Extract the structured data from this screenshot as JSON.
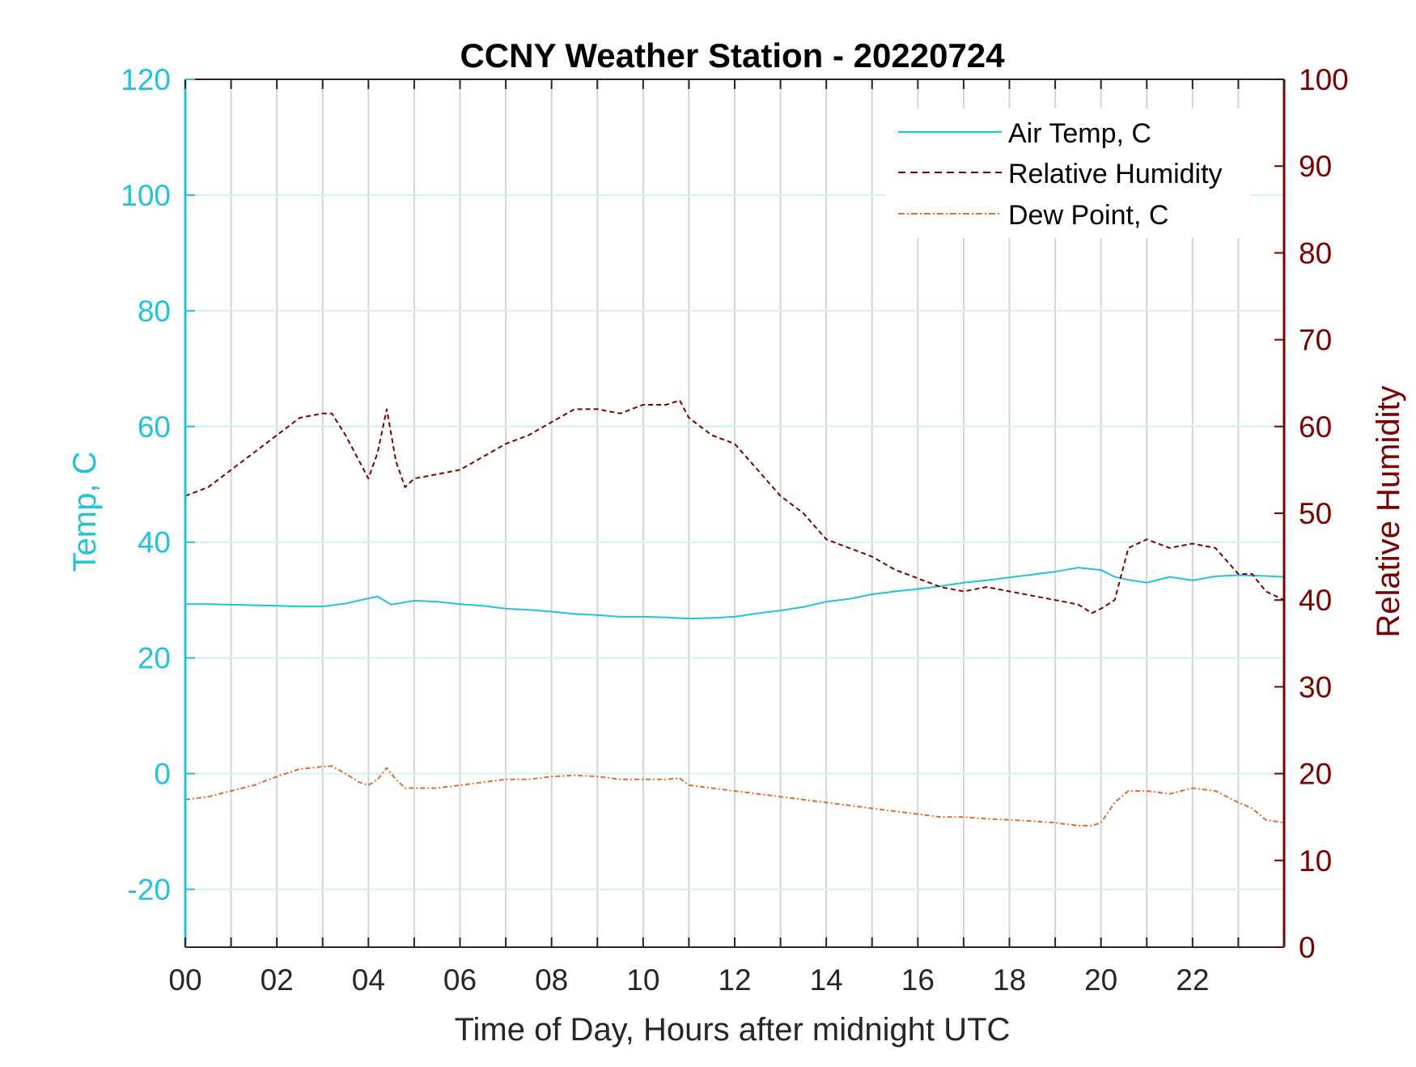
{
  "chart_data": {
    "type": "line",
    "title": "CCNY Weather Station - 20220724",
    "xlabel": "Time of Day, Hours after midnight UTC",
    "ylabel_left": "Temp, C",
    "ylabel_right": "Relative Humidity",
    "xlim": [
      0,
      24
    ],
    "ylim_left": [
      -30,
      120
    ],
    "ylim_right": [
      0,
      100
    ],
    "x_ticks": [
      0,
      2,
      4,
      6,
      8,
      10,
      12,
      14,
      16,
      18,
      20,
      22
    ],
    "x_tick_labels": [
      "00",
      "02",
      "04",
      "06",
      "08",
      "10",
      "12",
      "14",
      "16",
      "18",
      "20",
      "22"
    ],
    "y_left_ticks": [
      -20,
      0,
      20,
      40,
      60,
      80,
      100,
      120
    ],
    "y_right_ticks": [
      0,
      10,
      20,
      30,
      40,
      50,
      60,
      70,
      80,
      90,
      100
    ],
    "grid": true,
    "legend_position": "top-right",
    "colors": {
      "temp": "#21c3db",
      "rh": "#7a0000",
      "dew": "#e06b2c",
      "grid_vertical": "#d4d4d4",
      "grid_horizontal": "#d4eff5"
    },
    "series": [
      {
        "name": "Air Temp, C",
        "axis": "left",
        "style": "solid",
        "x": [
          0,
          0.5,
          1,
          1.5,
          2,
          2.5,
          3,
          3.5,
          4,
          4.2,
          4.5,
          5,
          5.5,
          6,
          6.5,
          7,
          7.5,
          8,
          8.5,
          9,
          9.5,
          10,
          10.5,
          11,
          11.5,
          12,
          12.5,
          13,
          13.5,
          14,
          14.5,
          15,
          15.5,
          16,
          16.5,
          17,
          17.5,
          18,
          18.5,
          19,
          19.5,
          20,
          20.3,
          20.6,
          21,
          21.5,
          22,
          22.5,
          23,
          23.5,
          24
        ],
        "y": [
          29.3,
          29.3,
          29.2,
          29.1,
          29.0,
          28.9,
          28.9,
          29.4,
          30.3,
          30.6,
          29.2,
          29.9,
          29.7,
          29.3,
          29.0,
          28.5,
          28.3,
          28.0,
          27.6,
          27.4,
          27.1,
          27.1,
          27.0,
          26.8,
          26.9,
          27.1,
          27.7,
          28.2,
          28.8,
          29.7,
          30.2,
          31.0,
          31.5,
          31.9,
          32.4,
          33.0,
          33.4,
          33.9,
          34.4,
          34.9,
          35.6,
          35.2,
          34.0,
          33.5,
          33.0,
          34.0,
          33.4,
          34.1,
          34.3,
          34.2,
          34.0
        ]
      },
      {
        "name": "Relative Humidity",
        "axis": "right",
        "style": "dashed",
        "x": [
          0,
          0.5,
          1,
          1.5,
          2,
          2.5,
          3,
          3.2,
          3.5,
          3.8,
          4,
          4.2,
          4.4,
          4.6,
          4.8,
          5,
          5.5,
          6,
          6.5,
          7,
          7.5,
          8,
          8.5,
          9,
          9.5,
          10,
          10.5,
          10.8,
          11,
          11.5,
          12,
          12.5,
          13,
          13.5,
          14,
          14.5,
          15,
          15.5,
          16,
          16.5,
          17,
          17.5,
          18,
          18.5,
          19,
          19.5,
          19.8,
          20,
          20.3,
          20.6,
          21,
          21.5,
          22,
          22.5,
          23,
          23.3,
          23.6,
          24
        ],
        "y": [
          52,
          53,
          55,
          57,
          59,
          61,
          61.5,
          61.5,
          59,
          56,
          54,
          57,
          62,
          56,
          53,
          54,
          54.5,
          55,
          56.5,
          58,
          59,
          60.5,
          62,
          62,
          61.5,
          62.5,
          62.5,
          63,
          61,
          59,
          58,
          55,
          52,
          50,
          47,
          46,
          45,
          43.5,
          42.5,
          41.5,
          41,
          41.5,
          41,
          40.5,
          40,
          39.5,
          38.5,
          39,
          40,
          46,
          47,
          46,
          46.5,
          46,
          43,
          43,
          41,
          40
        ]
      },
      {
        "name": "Dew Point, C",
        "axis": "left",
        "style": "dashdot",
        "x": [
          0,
          0.5,
          1,
          1.5,
          2,
          2.5,
          3,
          3.2,
          3.5,
          3.8,
          4,
          4.2,
          4.4,
          4.6,
          4.8,
          5,
          5.5,
          6,
          6.5,
          7,
          7.5,
          8,
          8.5,
          9,
          9.5,
          10,
          10.5,
          10.8,
          11,
          11.5,
          12,
          12.5,
          13,
          13.5,
          14,
          14.5,
          15,
          15.5,
          16,
          16.5,
          17,
          17.5,
          18,
          18.5,
          19,
          19.5,
          19.8,
          20,
          20.3,
          20.6,
          21,
          21.5,
          22,
          22.5,
          23,
          23.3,
          23.6,
          24
        ],
        "y": [
          -4.5,
          -4,
          -3,
          -2,
          -0.5,
          0.8,
          1.2,
          1.3,
          0,
          -1.5,
          -2,
          -1,
          1,
          -1,
          -2.5,
          -2.5,
          -2.5,
          -2,
          -1.5,
          -1,
          -1,
          -0.5,
          -0.3,
          -0.5,
          -1,
          -1,
          -1,
          -0.8,
          -2,
          -2.5,
          -3,
          -3.5,
          -4,
          -4.5,
          -5,
          -5.5,
          -6,
          -6.5,
          -7,
          -7.5,
          -7.5,
          -7.8,
          -8,
          -8.2,
          -8.5,
          -9,
          -9,
          -8.5,
          -5,
          -3,
          -3,
          -3.5,
          -2.5,
          -3,
          -5,
          -6,
          -8,
          -8.5
        ]
      }
    ]
  }
}
